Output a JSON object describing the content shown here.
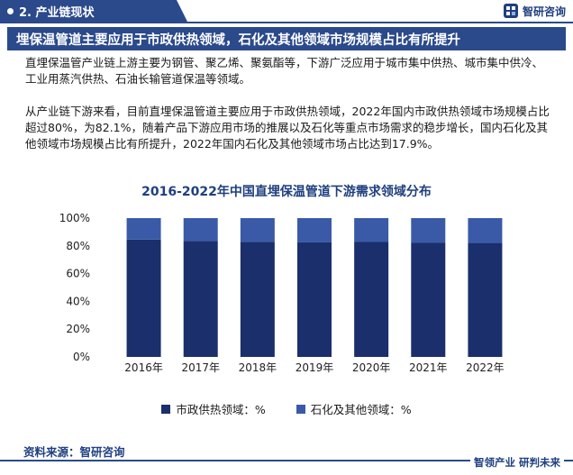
{
  "header": {
    "section_label": "2. 产业链现状",
    "brand_name": "智研咨询"
  },
  "headline": "埋保温管道主要应用于市政供热领域，石化及其他领域市场规模占比有所提升",
  "paragraphs": [
    "直埋保温管产业链上游主要为钢管、聚乙烯、聚氨酯等，下游广泛应用于城市集中供热、城市集中供冷、工业用蒸汽供热、石油长输管道保温等领域。",
    "从产业链下游来看，目前直埋保温管道主要应用于市政供热领域，2022年国内市政供热领域市场规模占比超过80%，为82.1%，随着产品下游应用市场的推展以及石化等重点市场需求的稳步增长，国内石化及其他领域市场规模占比有所提升，2022年国内石化及其他领域市场占比达到17.9%。"
  ],
  "chart_data": {
    "type": "bar",
    "stacked": true,
    "title": "2016-2022年中国直埋保温管道下游需求领域分布",
    "categories": [
      "2016年",
      "2017年",
      "2018年",
      "2019年",
      "2020年",
      "2021年",
      "2022年"
    ],
    "series": [
      {
        "name": "市政供热领域：%",
        "color": "#1a2f6b",
        "values": [
          84.5,
          83.5,
          83.0,
          82.5,
          82.8,
          82.4,
          82.1
        ]
      },
      {
        "name": "石化及其他领域：%",
        "color": "#3a5aa8",
        "values": [
          15.5,
          16.5,
          17.0,
          17.5,
          17.2,
          17.6,
          17.9
        ]
      }
    ],
    "ylim": [
      0,
      100
    ],
    "yticks": [
      "0%",
      "20%",
      "40%",
      "60%",
      "80%",
      "100%"
    ],
    "legend_position": "bottom"
  },
  "footer": {
    "source": "资料来源：智研咨询",
    "slogan": "智领产业  研判未来"
  }
}
